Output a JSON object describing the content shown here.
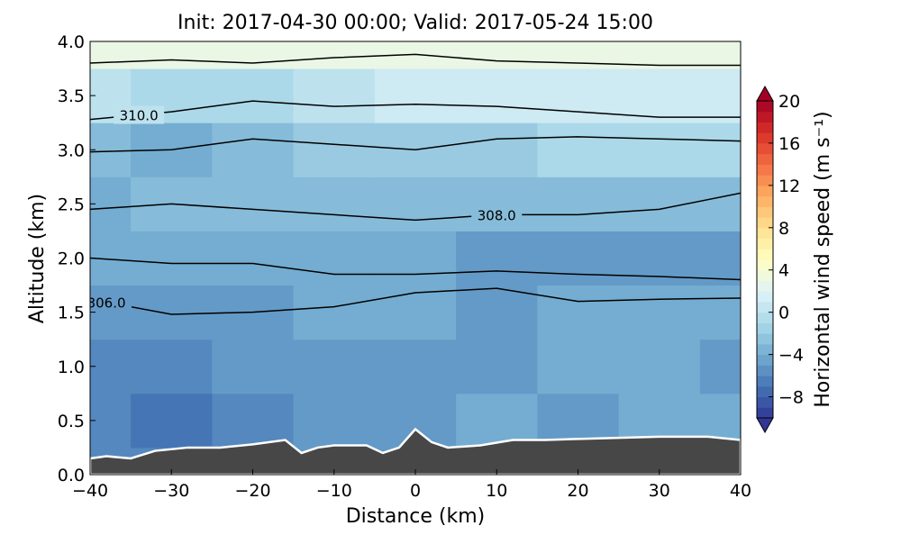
{
  "chart_data": {
    "type": "contour",
    "title": "Init: 2017-04-30 00:00; Valid: 2017-05-24 15:00",
    "xlabel": "Distance (km)",
    "ylabel": "Altitude (km)",
    "xlim": [
      -40,
      40
    ],
    "xticks": [
      {
        "value": -40,
        "label": "−40"
      },
      {
        "value": -30,
        "label": "−30"
      },
      {
        "value": -20,
        "label": "−20"
      },
      {
        "value": -10,
        "label": "−10"
      },
      0,
      10,
      20,
      30,
      40
    ],
    "ylim": [
      0,
      4
    ],
    "yticks": [
      {
        "value": 0,
        "label": "0.0"
      },
      0.5,
      {
        "value": 1,
        "label": "1.0"
      },
      1.5,
      {
        "value": 2,
        "label": "2.0"
      },
      2.5,
      {
        "value": 3,
        "label": "3.0"
      },
      3.5,
      {
        "value": 4,
        "label": "4.0"
      }
    ],
    "field": {
      "x": [
        -40,
        -30,
        -20,
        -10,
        0,
        10,
        20,
        30,
        40
      ],
      "y": [
        0,
        0.5,
        1,
        1.5,
        2,
        2.5,
        3,
        3.5,
        4
      ],
      "values": [
        [
          -6,
          -6,
          -6,
          -5,
          -5,
          -5,
          -5,
          -5,
          -5
        ],
        [
          -6,
          -7,
          -6,
          -5,
          -5,
          -4,
          -5,
          -4,
          -4
        ],
        [
          -6,
          -6,
          -5,
          -5,
          -5,
          -5,
          -4,
          -4,
          -5
        ],
        [
          -5,
          -5,
          -5,
          -4,
          -4,
          -5,
          -4,
          -4,
          -4
        ],
        [
          -4,
          -4,
          -4,
          -4,
          -4,
          -5,
          -5,
          -5,
          -5
        ],
        [
          -4,
          -3,
          -3,
          -3,
          -3,
          -3,
          -3,
          -3,
          -3
        ],
        [
          -3,
          -4,
          -3,
          -2,
          -2,
          -2,
          -1,
          -1,
          -1
        ],
        [
          0,
          -1,
          -1,
          0,
          1,
          1,
          1,
          1,
          1
        ],
        [
          3,
          3,
          3,
          3,
          3,
          3,
          3,
          3,
          3
        ]
      ]
    },
    "contour_x": [
      -40,
      -30,
      -20,
      -10,
      0,
      10,
      20,
      30,
      40
    ],
    "contours": [
      {
        "level": 306,
        "label": "306.0",
        "y": [
          1.62,
          1.48,
          1.5,
          1.55,
          1.68,
          1.72,
          1.6,
          1.62,
          1.63
        ]
      },
      {
        "level": 307,
        "y": [
          2.0,
          1.95,
          1.95,
          1.85,
          1.85,
          1.88,
          1.85,
          1.83,
          1.8
        ]
      },
      {
        "level": 308,
        "label": "308.0",
        "y": [
          2.45,
          2.5,
          2.45,
          2.4,
          2.35,
          2.4,
          2.4,
          2.45,
          2.6
        ]
      },
      {
        "level": 309,
        "y": [
          2.98,
          3.0,
          3.1,
          3.05,
          3.0,
          3.1,
          3.12,
          3.1,
          3.08
        ]
      },
      {
        "level": 310,
        "label": "310.0",
        "y": [
          3.28,
          3.35,
          3.45,
          3.4,
          3.42,
          3.4,
          3.35,
          3.3,
          3.3
        ]
      },
      {
        "level": 311,
        "y": [
          3.8,
          3.83,
          3.8,
          3.85,
          3.88,
          3.82,
          3.8,
          3.78,
          3.78
        ]
      }
    ],
    "terrain_x": [
      -40,
      -38,
      -35,
      -32,
      -28,
      -24,
      -20,
      -16,
      -14,
      -12,
      -10,
      -6,
      -4,
      -2,
      0,
      2,
      4,
      8,
      12,
      16,
      20,
      30,
      36,
      40
    ],
    "terrain_y": [
      0.15,
      0.17,
      0.15,
      0.22,
      0.25,
      0.25,
      0.28,
      0.32,
      0.2,
      0.25,
      0.27,
      0.27,
      0.2,
      0.25,
      0.42,
      0.3,
      0.25,
      0.27,
      0.32,
      0.32,
      0.33,
      0.35,
      0.35,
      0.32
    ],
    "terrain_color": "#474747",
    "colorbar": {
      "label": "Horizontal wind speed (m s⁻¹)",
      "lim": [
        -10,
        20
      ],
      "ticks": [
        {
          "value": -8,
          "label": "−8"
        },
        {
          "value": -4,
          "label": "−4"
        },
        0,
        4,
        8,
        12,
        16,
        20
      ],
      "colors": [
        "#313695",
        "#4575b4",
        "#74add1",
        "#abd9e9",
        "#e0f3f8",
        "#ffffbf",
        "#fee090",
        "#fdae61",
        "#f46d43",
        "#d73027",
        "#a50026"
      ]
    }
  }
}
